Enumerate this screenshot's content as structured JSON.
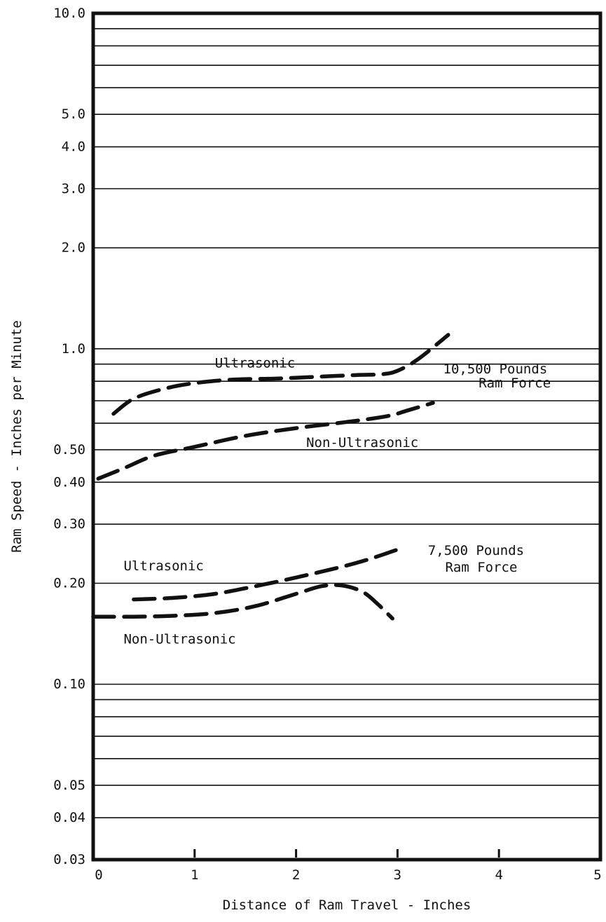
{
  "chart_data": {
    "type": "line",
    "title": "",
    "xlabel": "Distance of Ram Travel - Inches",
    "ylabel": "Ram Speed - Inches per Minute",
    "xlim": [
      0,
      5
    ],
    "ylim": [
      0.03,
      10.0
    ],
    "yscale": "log",
    "grid": true,
    "legend": "none",
    "x_ticks": [
      {
        "value": 0,
        "label": "0"
      },
      {
        "value": 1,
        "label": "1"
      },
      {
        "value": 2,
        "label": "2"
      },
      {
        "value": 3,
        "label": "3"
      },
      {
        "value": 4,
        "label": "4"
      },
      {
        "value": 5,
        "label": "5"
      }
    ],
    "y_ticks": [
      {
        "value": 10.0,
        "label": "10.0"
      },
      {
        "value": 5.0,
        "label": "5.0"
      },
      {
        "value": 4.0,
        "label": "4.0"
      },
      {
        "value": 3.0,
        "label": "3.0"
      },
      {
        "value": 2.0,
        "label": "2.0"
      },
      {
        "value": 1.0,
        "label": "1.0"
      },
      {
        "value": 0.5,
        "label": "0.50"
      },
      {
        "value": 0.4,
        "label": "0.40"
      },
      {
        "value": 0.3,
        "label": "0.30"
      },
      {
        "value": 0.2,
        "label": "0.20"
      },
      {
        "value": 0.1,
        "label": "0.10"
      },
      {
        "value": 0.05,
        "label": "0.05"
      },
      {
        "value": 0.04,
        "label": "0.04"
      },
      {
        "value": 0.03,
        "label": "0.03"
      }
    ],
    "gridlines_y": [
      10,
      9,
      8,
      7,
      6,
      5,
      4,
      3,
      2,
      1,
      0.9,
      0.8,
      0.7,
      0.6,
      0.5,
      0.4,
      0.3,
      0.2,
      0.1,
      0.09,
      0.08,
      0.07,
      0.06,
      0.05,
      0.04,
      0.03
    ],
    "series": [
      {
        "x": [
          0.2,
          0.4,
          0.7,
          1.0,
          1.4,
          1.8,
          2.2,
          2.6,
          2.85,
          3.0,
          3.2,
          3.5
        ],
        "y": [
          0.64,
          0.71,
          0.76,
          0.79,
          0.81,
          0.815,
          0.825,
          0.835,
          0.84,
          0.86,
          0.93,
          1.1
        ]
      },
      {
        "x": [
          0.05,
          0.3,
          0.6,
          1.0,
          1.5,
          2.0,
          2.5,
          2.9,
          3.1,
          3.35
        ],
        "y": [
          0.41,
          0.44,
          0.48,
          0.51,
          0.55,
          0.58,
          0.605,
          0.63,
          0.655,
          0.69
        ]
      },
      {
        "x": [
          0.4,
          0.8,
          1.2,
          1.6,
          2.0,
          2.4,
          2.7,
          3.0
        ],
        "y": [
          0.179,
          0.181,
          0.186,
          0.196,
          0.208,
          0.222,
          0.235,
          0.252
        ]
      },
      {
        "x": [
          0.0,
          0.4,
          0.8,
          1.2,
          1.6,
          2.0,
          2.25,
          2.45,
          2.65,
          2.8,
          2.95
        ],
        "y": [
          0.159,
          0.159,
          0.16,
          0.163,
          0.171,
          0.186,
          0.196,
          0.197,
          0.189,
          0.174,
          0.157
        ]
      }
    ],
    "annotations": [
      {
        "text": "Ultrasonic",
        "x": 1.2,
        "y": 0.905
      },
      {
        "text": "Non-Ultrasonic",
        "x": 2.1,
        "y": 0.525
      },
      {
        "text": "10,500 Pounds",
        "x": 3.45,
        "y": 0.87
      },
      {
        "text": "Ram Force",
        "x": 3.8,
        "y": 0.79
      },
      {
        "text": "Ultrasonic",
        "x": 0.3,
        "y": 0.225
      },
      {
        "text": "7,500 Pounds",
        "x": 3.3,
        "y": 0.25
      },
      {
        "text": "Ram Force",
        "x": 3.47,
        "y": 0.223
      },
      {
        "text": "Non-Ultrasonic",
        "x": 0.3,
        "y": 0.136
      }
    ]
  }
}
